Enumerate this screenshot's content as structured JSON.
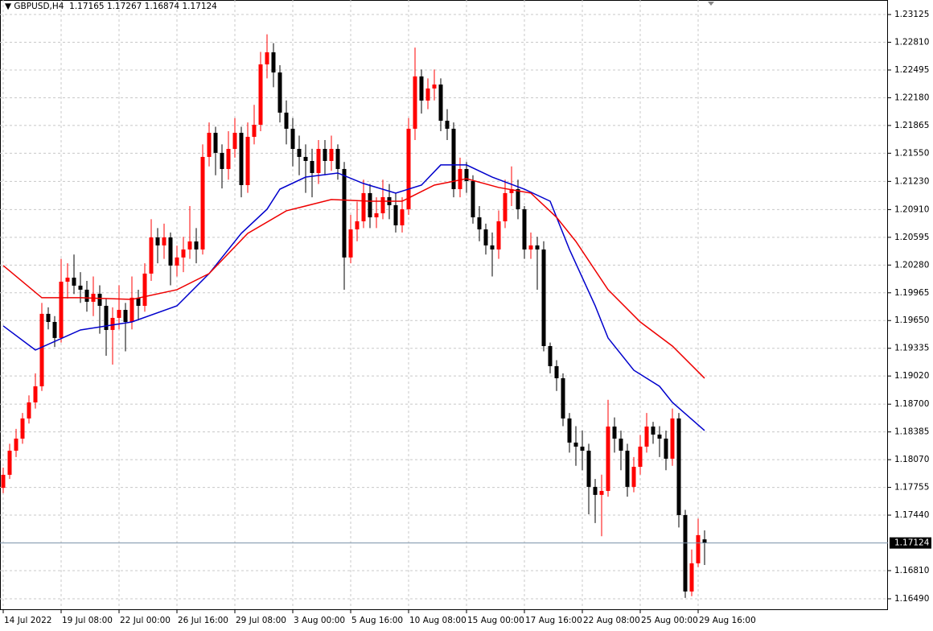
{
  "chart_data": {
    "type": "candlestick",
    "symbol": "GBPUSD,H4",
    "up_color": "#ff0000",
    "down_color": "#000000",
    "ohlc": [
      [
        1.1775,
        1.1798,
        1.1769,
        1.17898
      ],
      [
        1.17898,
        1.1825,
        1.1785,
        1.18172
      ],
      [
        1.18172,
        1.1842,
        1.181,
        1.18309
      ],
      [
        1.18309,
        1.186,
        1.1825,
        1.18538
      ],
      [
        1.18538,
        1.188,
        1.1848,
        1.1872
      ],
      [
        1.1872,
        1.1905,
        1.1865,
        1.18903
      ],
      [
        1.18903,
        1.1985,
        1.1885,
        1.19726
      ],
      [
        1.19726,
        1.198,
        1.1955,
        1.19634
      ],
      [
        1.19634,
        1.197,
        1.1935,
        1.19452
      ],
      [
        1.19452,
        1.2035,
        1.194,
        1.20091
      ],
      [
        1.20091,
        1.203,
        1.199,
        1.20137
      ],
      [
        1.20137,
        1.204,
        1.1995,
        1.20046
      ],
      [
        1.20046,
        1.202,
        1.1985,
        1.2
      ],
      [
        1.2,
        1.201,
        1.1975,
        1.19863
      ],
      [
        1.19863,
        1.2015,
        1.197,
        1.19954
      ],
      [
        1.19954,
        1.2005,
        1.195,
        1.19817
      ],
      [
        1.19817,
        1.199,
        1.1925,
        1.19543
      ],
      [
        1.19543,
        1.198,
        1.1915,
        1.1968
      ],
      [
        1.1968,
        1.2005,
        1.1955,
        1.19771
      ],
      [
        1.19771,
        1.1985,
        1.193,
        1.19634
      ],
      [
        1.19634,
        1.2015,
        1.1955,
        1.19909
      ],
      [
        1.19909,
        1.2,
        1.1965,
        1.19817
      ],
      [
        1.19817,
        1.203,
        1.1975,
        1.20183
      ],
      [
        1.20183,
        1.208,
        1.201,
        1.20594
      ],
      [
        1.20594,
        1.207,
        1.203,
        1.20503
      ],
      [
        1.20503,
        1.2075,
        1.2035,
        1.20594
      ],
      [
        1.20594,
        1.2065,
        1.2005,
        1.20274
      ],
      [
        1.20274,
        1.205,
        1.2015,
        1.20366
      ],
      [
        1.20366,
        1.206,
        1.202,
        1.20457
      ],
      [
        1.20457,
        1.2095,
        1.2035,
        1.20548
      ],
      [
        1.20548,
        1.207,
        1.203,
        1.20457
      ],
      [
        1.20457,
        1.2165,
        1.204,
        1.21508
      ],
      [
        1.21508,
        1.219,
        1.214,
        1.21782
      ],
      [
        1.21782,
        1.2185,
        1.213,
        1.21554
      ],
      [
        1.21554,
        1.2165,
        1.2115,
        1.21371
      ],
      [
        1.21371,
        1.218,
        1.2125,
        1.21599
      ],
      [
        1.21599,
        1.2195,
        1.215,
        1.21782
      ],
      [
        1.21782,
        1.2185,
        1.2105,
        1.21188
      ],
      [
        1.21188,
        1.219,
        1.211,
        1.21736
      ],
      [
        1.21736,
        1.221,
        1.2165,
        1.21873
      ],
      [
        1.21873,
        1.227,
        1.218,
        1.22559
      ],
      [
        1.22559,
        1.229,
        1.224,
        1.22696
      ],
      [
        1.22696,
        1.228,
        1.223,
        1.22467
      ],
      [
        1.22467,
        1.2255,
        1.219,
        1.22011
      ],
      [
        1.22011,
        1.2215,
        1.2165,
        1.21828
      ],
      [
        1.21828,
        1.2195,
        1.214,
        1.21599
      ],
      [
        1.21599,
        1.2175,
        1.213,
        1.21508
      ],
      [
        1.21508,
        1.2165,
        1.211,
        1.21462
      ],
      [
        1.21462,
        1.216,
        1.2105,
        1.21325
      ],
      [
        1.21325,
        1.217,
        1.212,
        1.21599
      ],
      [
        1.21599,
        1.217,
        1.213,
        1.21462
      ],
      [
        1.21462,
        1.2175,
        1.2135,
        1.21599
      ],
      [
        1.21599,
        1.2165,
        1.2125,
        1.21371
      ],
      [
        1.21371,
        1.2145,
        1.2,
        1.20366
      ],
      [
        1.20366,
        1.2085,
        1.203,
        1.20685
      ],
      [
        1.20685,
        1.21,
        1.2055,
        1.20777
      ],
      [
        1.20777,
        1.2125,
        1.207,
        1.21097
      ],
      [
        1.21097,
        1.212,
        1.207,
        1.20822
      ],
      [
        1.20822,
        1.2105,
        1.207,
        1.20868
      ],
      [
        1.20868,
        1.2125,
        1.208,
        1.21051
      ],
      [
        1.21051,
        1.212,
        1.208,
        1.2096
      ],
      [
        1.2096,
        1.211,
        1.2065,
        1.20731
      ],
      [
        1.20731,
        1.2105,
        1.2065,
        1.20914
      ],
      [
        1.20914,
        1.2195,
        1.2085,
        1.21828
      ],
      [
        1.21828,
        1.2275,
        1.217,
        1.22422
      ],
      [
        1.22422,
        1.225,
        1.22,
        1.22148
      ],
      [
        1.22148,
        1.224,
        1.2205,
        1.22285
      ],
      [
        1.22285,
        1.225,
        1.2215,
        1.2233
      ],
      [
        1.2233,
        1.224,
        1.218,
        1.21919
      ],
      [
        1.21919,
        1.2205,
        1.217,
        1.21828
      ],
      [
        1.21828,
        1.219,
        1.2105,
        1.21142
      ],
      [
        1.21142,
        1.215,
        1.2105,
        1.21371
      ],
      [
        1.21371,
        1.2145,
        1.211,
        1.21234
      ],
      [
        1.21234,
        1.213,
        1.2075,
        1.20822
      ],
      [
        1.20822,
        1.2095,
        1.2055,
        1.20685
      ],
      [
        1.20685,
        1.2075,
        1.204,
        1.20503
      ],
      [
        1.20503,
        1.2065,
        1.2015,
        1.20457
      ],
      [
        1.20457,
        1.209,
        1.2035,
        1.20777
      ],
      [
        1.20777,
        1.2125,
        1.207,
        1.21097
      ],
      [
        1.21097,
        1.214,
        1.2095,
        1.21142
      ],
      [
        1.21142,
        1.2125,
        1.208,
        1.20914
      ],
      [
        1.20914,
        1.2095,
        1.2035,
        1.20457
      ],
      [
        1.20457,
        1.2065,
        1.2035,
        1.20503
      ],
      [
        1.20503,
        1.206,
        1.2,
        1.20457
      ],
      [
        1.20457,
        1.2055,
        1.193,
        1.1936
      ],
      [
        1.1936,
        1.194,
        1.1905,
        1.19132
      ],
      [
        1.19132,
        1.192,
        1.1885,
        1.18995
      ],
      [
        1.18995,
        1.1905,
        1.1845,
        1.18538
      ],
      [
        1.18538,
        1.186,
        1.1815,
        1.18264
      ],
      [
        1.18264,
        1.1845,
        1.18,
        1.18218
      ],
      [
        1.18218,
        1.184,
        1.1795,
        1.18172
      ],
      [
        1.18172,
        1.1825,
        1.1745,
        1.17761
      ],
      [
        1.17761,
        1.1785,
        1.1735,
        1.1767
      ],
      [
        1.1767,
        1.179,
        1.172,
        1.17715
      ],
      [
        1.17715,
        1.1875,
        1.1765,
        1.18446
      ],
      [
        1.18446,
        1.1855,
        1.1815,
        1.18309
      ],
      [
        1.18309,
        1.184,
        1.1795,
        1.18172
      ],
      [
        1.18172,
        1.1825,
        1.1765,
        1.17761
      ],
      [
        1.17761,
        1.181,
        1.177,
        1.17989
      ],
      [
        1.17989,
        1.1835,
        1.179,
        1.18218
      ],
      [
        1.18218,
        1.186,
        1.1815,
        1.18446
      ],
      [
        1.18446,
        1.185,
        1.1825,
        1.18355
      ],
      [
        1.18355,
        1.1845,
        1.181,
        1.18309
      ],
      [
        1.18309,
        1.184,
        1.1795,
        1.18081
      ],
      [
        1.18081,
        1.1865,
        1.18,
        1.18538
      ],
      [
        1.18538,
        1.186,
        1.173,
        1.17441
      ],
      [
        1.17441,
        1.175,
        1.165,
        1.16573
      ],
      [
        1.16573,
        1.1705,
        1.1652,
        1.16893
      ],
      [
        1.16893,
        1.174,
        1.1685,
        1.17213
      ],
      [
        1.17165,
        1.17267,
        1.16874,
        1.17124
      ]
    ],
    "series": [
      {
        "color": "#0000cc",
        "x": [
          0,
          5,
          12,
          20,
          27,
          32,
          37,
          41,
          43,
          47,
          52,
          56,
          61,
          65,
          68,
          72,
          76,
          81,
          85,
          88,
          92,
          94,
          98,
          102,
          104,
          109
        ],
        "values": [
          1.19589,
          1.19315,
          1.19543,
          1.19634,
          1.19817,
          1.20183,
          1.2064,
          1.20914,
          1.21142,
          1.21279,
          1.21325,
          1.21206,
          1.21097,
          1.21188,
          1.21417,
          1.21417,
          1.21279,
          1.21142,
          1.21005,
          1.20457,
          1.19817,
          1.19452,
          1.19086,
          1.18903,
          1.1872,
          1.18401
        ]
      },
      {
        "color": "#ee0000",
        "x": [
          0,
          6,
          12,
          20,
          27,
          32,
          38,
          44,
          51,
          57,
          62,
          67,
          72,
          77,
          82,
          86,
          89,
          94,
          99,
          104,
          109
        ],
        "values": [
          1.20274,
          1.19909,
          1.19909,
          1.1989,
          1.2,
          1.20183,
          1.2064,
          1.20896,
          1.21024,
          1.21005,
          1.21005,
          1.21188,
          1.21261,
          1.21161,
          1.21097,
          1.20822,
          1.20548,
          1.2,
          1.19634,
          1.1936,
          1.18995
        ]
      }
    ],
    "current_price": 1.17124,
    "xlim": [
      -0.5,
      137.5
    ],
    "ylim": [
      1.16371,
      1.2329
    ],
    "yticks": [
      1.23125,
      {
        "value": 1.2281,
        "label": "1.22810"
      },
      1.22495,
      {
        "value": 1.2218,
        "label": "1.22180"
      },
      1.21865,
      {
        "value": 1.2155,
        "label": "1.21550"
      },
      {
        "value": 1.2123,
        "label": "1.21230"
      },
      {
        "value": 1.2091,
        "label": "1.20910"
      },
      1.20595,
      {
        "value": 1.2028,
        "label": "1.20280"
      },
      1.19965,
      {
        "value": 1.1965,
        "label": "1.19650"
      },
      1.19335,
      {
        "value": 1.1902,
        "label": "1.19020"
      },
      {
        "value": 1.187,
        "label": "1.18700"
      },
      1.18385,
      {
        "value": 1.1807,
        "label": "1.18070"
      },
      1.17755,
      {
        "value": 1.1744,
        "label": "1.17440"
      },
      {
        "value": 1.1681,
        "label": "1.16810"
      },
      {
        "value": 1.1649,
        "label": "1.16490"
      }
    ],
    "xticks": [
      {
        "value": 0,
        "label": "14 Jul 2022"
      },
      {
        "value": 9,
        "label": "19 Jul 08:00"
      },
      {
        "value": 18,
        "label": "22 Jul 00:00"
      },
      {
        "value": 27,
        "label": "26 Jul 16:00"
      },
      {
        "value": 36,
        "label": "29 Jul 08:00"
      },
      {
        "value": 45,
        "label": "3 Aug 00:00"
      },
      {
        "value": 54,
        "label": "5 Aug 16:00"
      },
      {
        "value": 63,
        "label": "10 Aug 08:00"
      },
      {
        "value": 72,
        "label": "15 Aug 00:00"
      },
      {
        "value": 81,
        "label": "17 Aug 16:00"
      },
      {
        "value": 90,
        "label": "22 Aug 08:00"
      },
      {
        "value": 99,
        "label": "25 Aug 00:00"
      },
      {
        "value": 108,
        "label": "29 Aug 16:00"
      }
    ],
    "grid": true
  }
}
